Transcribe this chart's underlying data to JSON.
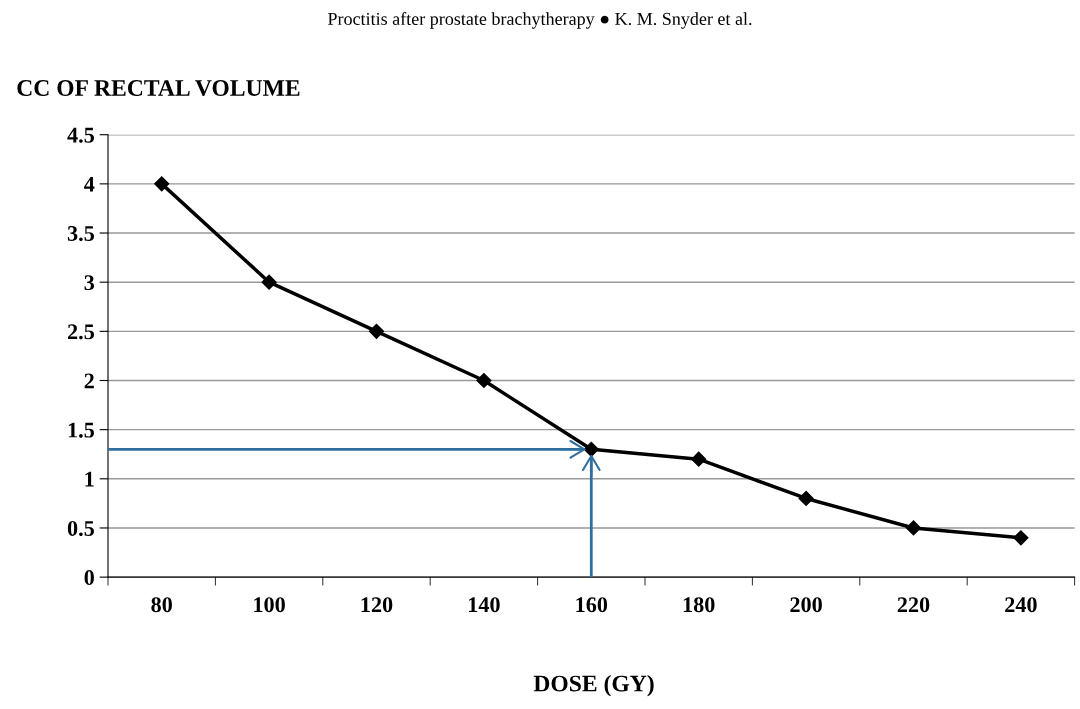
{
  "chart_data": {
    "type": "line",
    "annotations": [
      "Proctitis after prostate brachytherapy ● K. M. Snyder et al."
    ],
    "ylabel": "CC OF RECTAL VOLUME",
    "xlabel": "DOSE (GY)",
    "categories": [
      "80",
      "100",
      "120",
      "140",
      "160",
      "180",
      "200",
      "220",
      "240"
    ],
    "series": [
      {
        "color": "#000000",
        "values": [
          4,
          3,
          2.5,
          2,
          1.3,
          1.2,
          0.8,
          0.5,
          0.4
        ]
      }
    ],
    "ylim": [
      0,
      4.5
    ],
    "yticks": [
      0,
      0.5,
      1,
      1.5,
      2,
      2.5,
      3,
      3.5,
      4,
      4.5
    ],
    "ref_lines": [
      {
        "axis": "y",
        "value": 1.3,
        "color": "#2f6f9f",
        "line_style": "solid"
      },
      {
        "axis": "x",
        "value": "160",
        "color": "#2f6f9f",
        "line_style": "solid"
      }
    ],
    "grid": "y",
    "marker": "diamond",
    "line_style": "solid"
  }
}
